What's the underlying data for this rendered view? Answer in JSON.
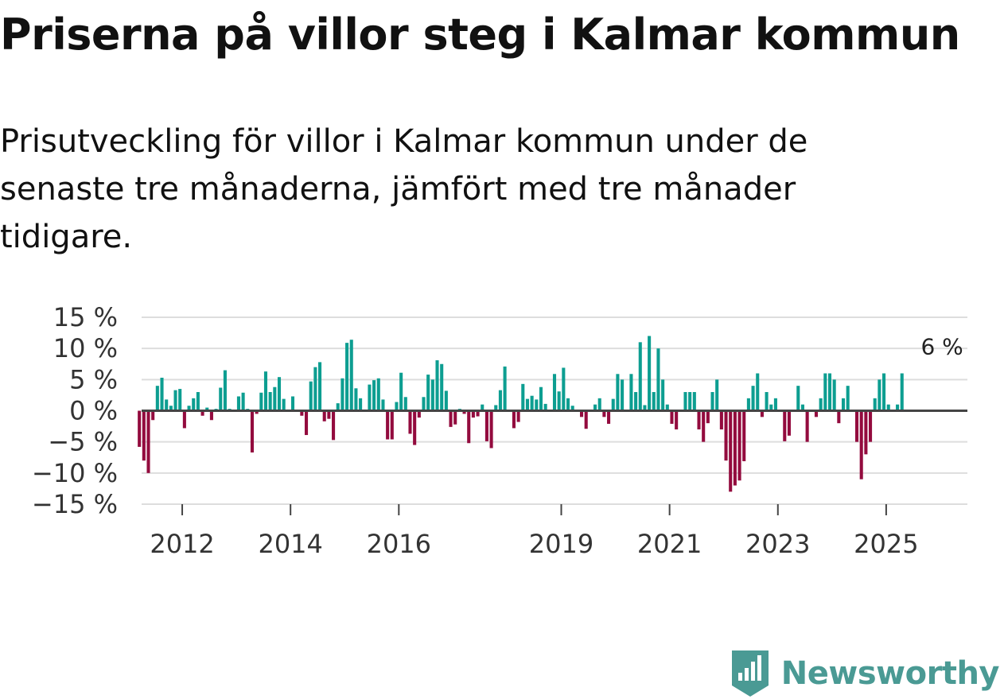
{
  "title": "Priserna på villor steg i Kalmar kommun",
  "subtitle": "Prisutveckling för villor i Kalmar kommun under de senaste tre månaderna, jämfört med tre månader tidigare.",
  "brand": {
    "name": "Newsworthy",
    "icon": "newsworthy-logo-icon"
  },
  "colors": {
    "positive": "#0d9e91",
    "negative": "#930b3e",
    "grid": "#dddddd",
    "zero_line": "#444444",
    "text": "#333333",
    "brand": "#4a9a94"
  },
  "chart_data": {
    "type": "bar",
    "title": "Priserna på villor steg i Kalmar kommun",
    "xlabel": "",
    "ylabel": "",
    "unit": "%",
    "ylim": [
      -15,
      15
    ],
    "grid": true,
    "y_ticks": [
      15,
      10,
      5,
      0,
      -5,
      -10,
      -15
    ],
    "y_tick_labels": [
      "15 %",
      "10 %",
      "5 %",
      "0 %",
      "−5 %",
      "−10 %",
      "−15 %"
    ],
    "x_ticks": [
      {
        "label": "2012",
        "month_index": 12
      },
      {
        "label": "2014",
        "month_index": 36
      },
      {
        "label": "2016",
        "month_index": 60
      },
      {
        "label": "2019",
        "month_index": 96
      },
      {
        "label": "2021",
        "month_index": 120
      },
      {
        "label": "2023",
        "month_index": 144
      },
      {
        "label": "2025",
        "month_index": 168
      }
    ],
    "x_range_months": [
      3,
      186
    ],
    "start": "2011-03",
    "end": "2025-09",
    "annotation": {
      "text": "6 %",
      "month_index": 180,
      "value": 6
    },
    "values": [
      -5.8,
      -8,
      -10,
      -1.5,
      4,
      5.3,
      1.8,
      0.8,
      3.3,
      3.5,
      -2.8,
      0.8,
      2,
      3,
      -0.8,
      0.5,
      -1.5,
      0.3,
      3.7,
      6.5,
      0.3,
      0.1,
      2.3,
      2.9,
      0.3,
      -6.7,
      -0.5,
      2.9,
      6.3,
      3,
      3.8,
      5.4,
      1.9,
      0.2,
      2.3,
      0.1,
      -0.8,
      -3.9,
      4.7,
      7,
      7.8,
      -1.7,
      -1.3,
      -4.7,
      1.2,
      5.2,
      10.9,
      11.4,
      3.6,
      2,
      0.2,
      4.2,
      4.9,
      5.2,
      1.8,
      -4.6,
      -4.6,
      1.4,
      6.1,
      2.2,
      -3.7,
      -5.5,
      -1.1,
      2.2,
      5.8,
      5,
      8.1,
      7.5,
      3.2,
      -2.6,
      -2.2,
      0.3,
      -0.5,
      -5.2,
      -1.1,
      -0.9,
      1,
      -4.9,
      -6,
      0.9,
      3.3,
      7.1,
      0.1,
      -2.8,
      -1.8,
      4.3,
      1.9,
      2.4,
      1.8,
      3.8,
      1.1,
      0.1,
      5.9,
      3.1,
      6.9,
      2,
      0.8,
      0.1,
      -1,
      -2.9,
      0.1,
      1,
      2,
      -1,
      -2.1,
      1.9,
      5.9,
      5,
      0.1,
      5.9,
      3,
      11,
      0.9,
      12,
      3,
      10,
      5,
      1,
      -2.1,
      -3,
      0.1,
      3,
      3,
      3,
      -3,
      -5,
      -2,
      3,
      5,
      -3,
      -8,
      -13,
      -12,
      -11.2,
      -8.1,
      2,
      4,
      6,
      -1,
      3,
      1,
      2,
      0.1,
      -4.9,
      -4,
      0.1,
      4,
      1,
      -5,
      0.1,
      -1,
      2,
      6,
      6,
      5,
      -2,
      2,
      4,
      0.1,
      -5,
      -11,
      -7,
      -5,
      2,
      5,
      6,
      1,
      0.1,
      1,
      6
    ]
  }
}
